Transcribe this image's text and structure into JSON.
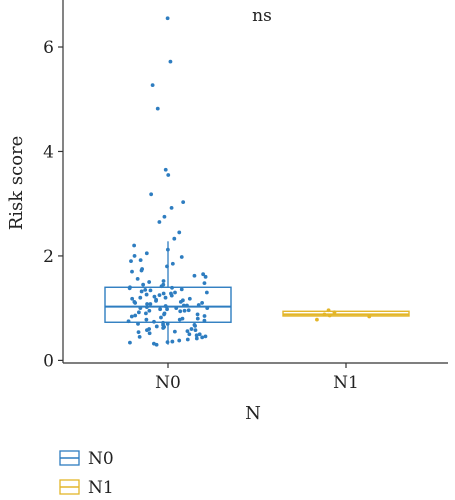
{
  "chart_data": {
    "type": "boxplot",
    "xlabel": "N",
    "ylabel": "Risk score",
    "annotation": "ns",
    "ylim": [
      -0.05,
      6.9
    ],
    "yticks": [
      0,
      2,
      4,
      6
    ],
    "categories": [
      "N0",
      "N1"
    ],
    "legend": {
      "placement": "bottom-left",
      "entries": [
        "N0",
        "N1"
      ]
    },
    "series": [
      {
        "name": "N0",
        "color": "#2e7dc0",
        "box": {
          "q1": 0.73,
          "median": 1.03,
          "q3": 1.4,
          "whisker_low": 0.3,
          "whisker_high": 2.28
        },
        "outliers": [
          6.55,
          5.72,
          5.27,
          4.82,
          3.65,
          3.55,
          3.18,
          3.03,
          2.92,
          2.75,
          2.65,
          2.45,
          2.33
        ],
        "points": [
          6.55,
          5.72,
          5.27,
          4.82,
          3.65,
          3.55,
          3.18,
          3.03,
          2.92,
          2.75,
          2.65,
          2.45,
          2.33,
          2.2,
          2.12,
          2.05,
          1.98,
          1.92,
          1.85,
          1.8,
          1.75,
          1.7,
          1.65,
          1.6,
          1.56,
          1.52,
          1.48,
          1.45,
          1.42,
          1.39,
          1.36,
          1.34,
          1.32,
          1.3,
          1.28,
          1.26,
          1.24,
          1.22,
          1.2,
          1.18,
          1.16,
          1.14,
          1.12,
          1.1,
          1.08,
          1.06,
          1.04,
          1.02,
          1.0,
          0.98,
          0.96,
          0.94,
          0.92,
          0.9,
          0.88,
          0.86,
          0.84,
          0.82,
          0.8,
          0.78,
          0.76,
          0.74,
          0.72,
          0.7,
          0.68,
          0.66,
          0.64,
          0.62,
          0.6,
          0.58,
          0.56,
          0.54,
          0.52,
          0.5,
          0.48,
          0.46,
          0.44,
          0.42,
          0.4,
          0.38,
          0.36,
          0.34,
          0.32,
          0.3,
          1.35,
          1.25,
          1.15,
          1.05,
          0.95,
          0.85,
          0.75,
          0.65,
          0.55,
          1.45,
          1.1,
          1.0,
          0.9,
          0.8,
          1.3,
          1.2,
          0.7,
          0.6,
          0.5,
          1.5,
          1.4,
          1.0,
          0.95,
          1.05,
          1.12,
          0.88,
          0.78,
          1.62,
          1.72,
          1.9,
          2.0,
          1.38,
          1.28,
          0.68,
          0.58,
          0.45,
          0.35,
          1.18,
          1.08,
          0.98
        ]
      },
      {
        "name": "N1",
        "color": "#e3b62a",
        "box": {
          "q1": 0.85,
          "median": 0.88,
          "q3": 0.94,
          "whisker_low": 0.85,
          "whisker_high": 0.94
        },
        "outliers": [],
        "points": [
          0.96,
          0.92,
          0.88,
          0.86,
          0.84,
          0.78
        ]
      }
    ]
  }
}
